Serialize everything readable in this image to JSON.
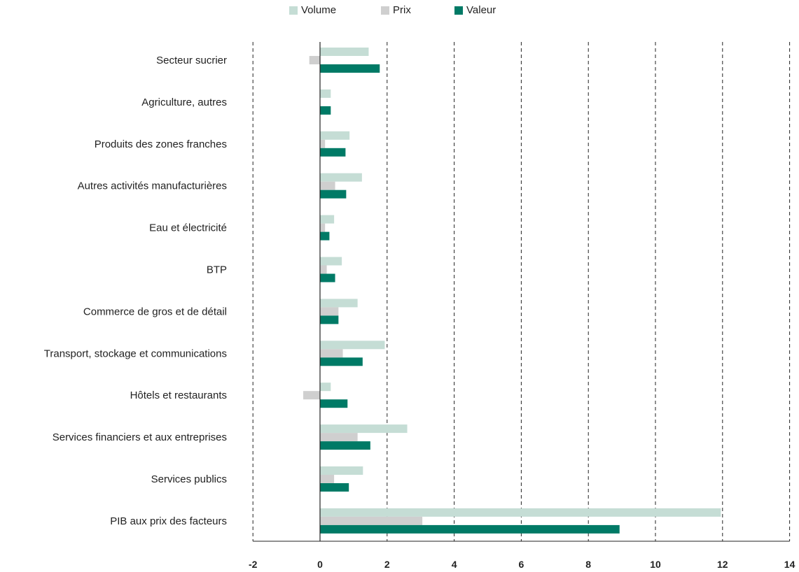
{
  "chart_data": {
    "type": "bar",
    "orientation": "horizontal",
    "categories": [
      "Secteur sucrier",
      "Agriculture, autres",
      "Produits des zones franches",
      "Autres activités manufacturières",
      "Eau et électricité ",
      "BTP",
      "Commerce de gros et de détail",
      "Transport, stockage et communications",
      "Hôtels et restaurants",
      "Services financiers et aux entreprises",
      "Services publics",
      "PIB aux prix des facteurs"
    ],
    "series": [
      {
        "name": "Volume",
        "color": "#c5ddd5",
        "values": [
          1.45,
          0.32,
          0.88,
          1.25,
          0.42,
          0.65,
          1.12,
          1.93,
          0.32,
          2.6,
          1.28,
          11.95
        ]
      },
      {
        "name": "Prix",
        "color": "#cfcfcf",
        "values": [
          -0.32,
          0.0,
          0.15,
          0.45,
          0.15,
          0.2,
          0.55,
          0.68,
          -0.5,
          1.12,
          0.42,
          3.05
        ]
      },
      {
        "name": "Valeur",
        "color": "#007a66",
        "values": [
          1.78,
          0.32,
          0.76,
          0.78,
          0.28,
          0.45,
          0.55,
          1.27,
          0.82,
          1.5,
          0.86,
          8.93
        ]
      }
    ],
    "xticks": [
      -2,
      0,
      2,
      4,
      6,
      8,
      10,
      12,
      14
    ],
    "xlim": [
      -2,
      14
    ],
    "grid": "vertical-dashed",
    "legend_position": "top-center"
  }
}
